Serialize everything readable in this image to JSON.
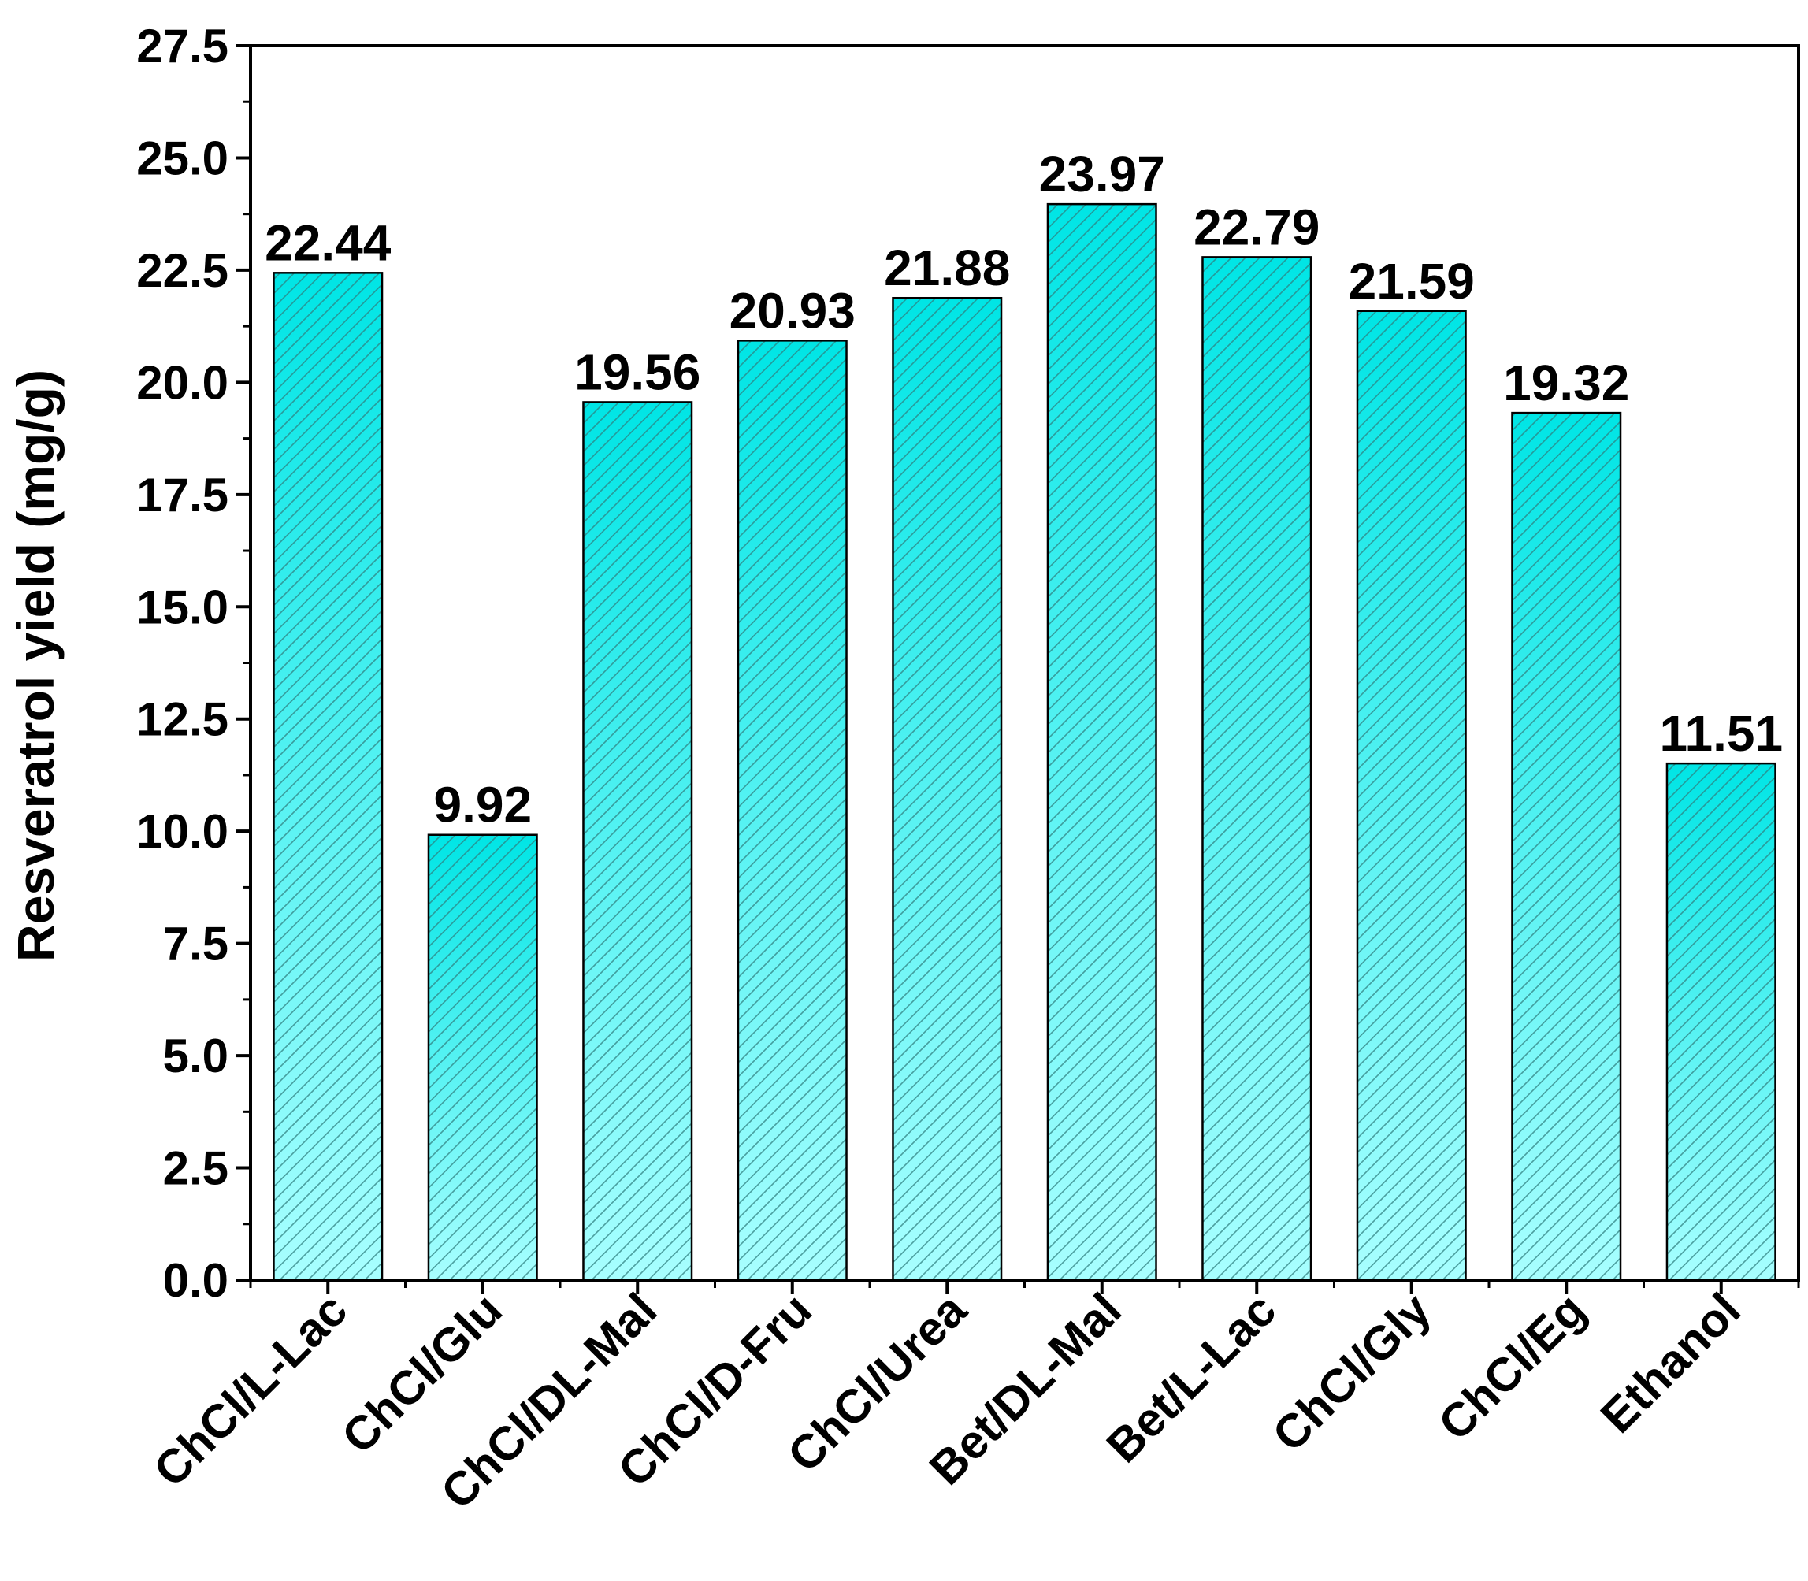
{
  "chart_data": {
    "type": "bar",
    "title": "",
    "xlabel": "",
    "ylabel": "Resveratrol yield (mg/g)",
    "ylim": [
      0,
      27.5
    ],
    "yticks": [
      "0.0",
      "2.5",
      "5.0",
      "7.5",
      "10.0",
      "12.5",
      "15.0",
      "17.5",
      "20.0",
      "22.5",
      "25.0",
      "27.5"
    ],
    "categories": [
      "ChCl/L-Lac",
      "ChCl/Glu",
      "ChCl/DL-Mal",
      "ChCl/D-Fru",
      "ChCl/Urea",
      "Bet/DL-Mal",
      "Bet/L-Lac",
      "ChCl/Gly",
      "ChCl/Eg",
      "Ethanol"
    ],
    "values": [
      22.44,
      9.92,
      19.56,
      20.93,
      21.88,
      23.97,
      22.79,
      21.59,
      19.32,
      11.51
    ],
    "value_labels": [
      "22.44",
      "9.92",
      "19.56",
      "20.93",
      "21.88",
      "23.97",
      "22.79",
      "21.59",
      "19.32",
      "11.51"
    ],
    "grid": false,
    "legend": "none",
    "bar_fill_top": "#00e5e5",
    "bar_fill_bottom": "#a8ffff",
    "bar_hatch": "diagonal"
  }
}
